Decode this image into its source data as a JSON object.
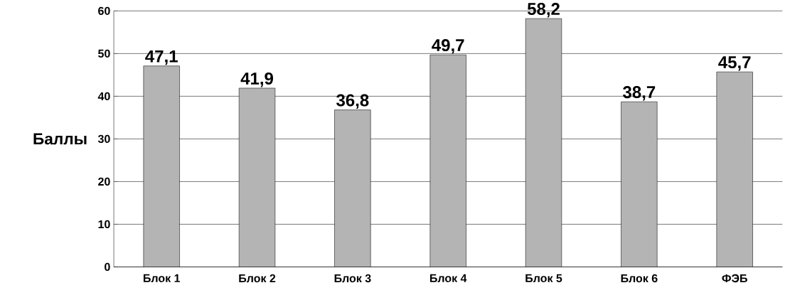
{
  "chart_data": {
    "type": "bar",
    "ylabel": "Баллы",
    "categories": [
      "Блок 1",
      "Блок 2",
      "Блок 3",
      "Блок 4",
      "Блок 5",
      "Блок 6",
      "ФЭБ"
    ],
    "values": [
      47.1,
      41.9,
      36.8,
      49.7,
      58.2,
      38.7,
      45.7
    ],
    "value_labels": [
      "47,1",
      "41,9",
      "36,8",
      "49,7",
      "58,2",
      "38,7",
      "45,7"
    ],
    "color": "#b4b4b4",
    "ylim": [
      0,
      60
    ],
    "yticks": [
      0,
      10,
      20,
      30,
      40,
      50,
      60
    ],
    "grid": "y"
  }
}
